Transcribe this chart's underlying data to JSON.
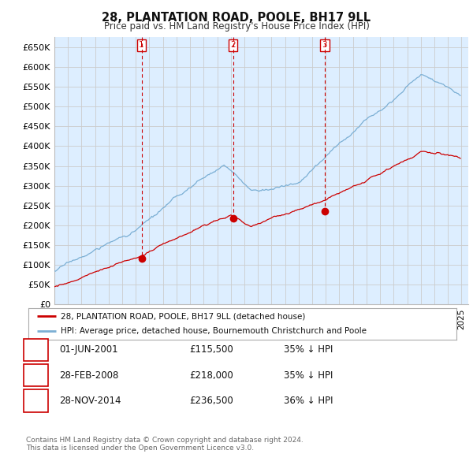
{
  "title": "28, PLANTATION ROAD, POOLE, BH17 9LL",
  "subtitle": "Price paid vs. HM Land Registry's House Price Index (HPI)",
  "ylabel_ticks": [
    "£0",
    "£50K",
    "£100K",
    "£150K",
    "£200K",
    "£250K",
    "£300K",
    "£350K",
    "£400K",
    "£450K",
    "£500K",
    "£550K",
    "£600K",
    "£650K"
  ],
  "ylim": [
    0,
    675000
  ],
  "xlim_start": 1995.0,
  "xlim_end": 2025.5,
  "hpi_color": "#7bafd4",
  "price_color": "#cc0000",
  "grid_color": "#cccccc",
  "chart_bg_color": "#ddeeff",
  "fig_bg_color": "#ffffff",
  "sale_marker_color": "#cc0000",
  "sales": [
    {
      "date_num": 2001.42,
      "price": 115500,
      "label": "1"
    },
    {
      "date_num": 2008.16,
      "price": 218000,
      "label": "2"
    },
    {
      "date_num": 2014.91,
      "price": 236500,
      "label": "3"
    }
  ],
  "table_rows": [
    {
      "num": "1",
      "date": "01-JUN-2001",
      "price": "£115,500",
      "pct": "35% ↓ HPI"
    },
    {
      "num": "2",
      "date": "28-FEB-2008",
      "price": "£218,000",
      "pct": "35% ↓ HPI"
    },
    {
      "num": "3",
      "date": "28-NOV-2014",
      "price": "£236,500",
      "pct": "36% ↓ HPI"
    }
  ],
  "legend_line1": "28, PLANTATION ROAD, POOLE, BH17 9LL (detached house)",
  "legend_line2": "HPI: Average price, detached house, Bournemouth Christchurch and Poole",
  "footer1": "Contains HM Land Registry data © Crown copyright and database right 2024.",
  "footer2": "This data is licensed under the Open Government Licence v3.0."
}
